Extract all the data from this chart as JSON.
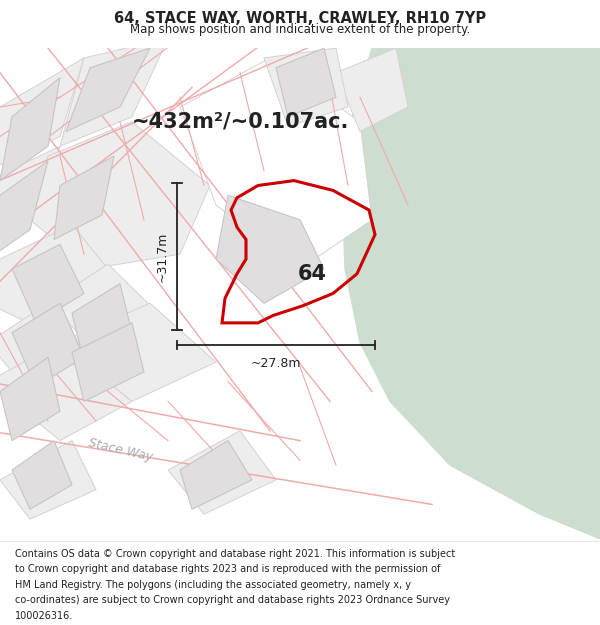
{
  "title_line1": "64, STACE WAY, WORTH, CRAWLEY, RH10 7YP",
  "title_line2": "Map shows position and indicative extent of the property.",
  "area_label": "~432m²/~0.107ac.",
  "width_label": "~27.8m",
  "height_label": "~31.7m",
  "plot_number": "64",
  "footer_lines": [
    "Contains OS data © Crown copyright and database right 2021. This information is subject",
    "to Crown copyright and database rights 2023 and is reproduced with the permission of",
    "HM Land Registry. The polygons (including the associated geometry, namely x, y",
    "co-ordinates) are subject to Crown copyright and database rights 2023 Ordnance Survey",
    "100026316."
  ],
  "bg_color": "#f7f6f4",
  "green_color": "#cdddd0",
  "road_line_color": "#f0aaaa",
  "building_fill": "#e0dede",
  "building_edge": "#c8c4c4",
  "plot_fill": "#eeeded",
  "plot_edge": "#d8d0d0",
  "red_color": "#cc0000",
  "black_color": "#222222",
  "gray_label_color": "#aaaaaa",
  "title_fontsize": 10.5,
  "subtitle_fontsize": 8.5,
  "area_fontsize": 15,
  "measure_fontsize": 9,
  "plot_num_fontsize": 15,
  "stace_way_fontsize": 9,
  "footer_fontsize": 7
}
